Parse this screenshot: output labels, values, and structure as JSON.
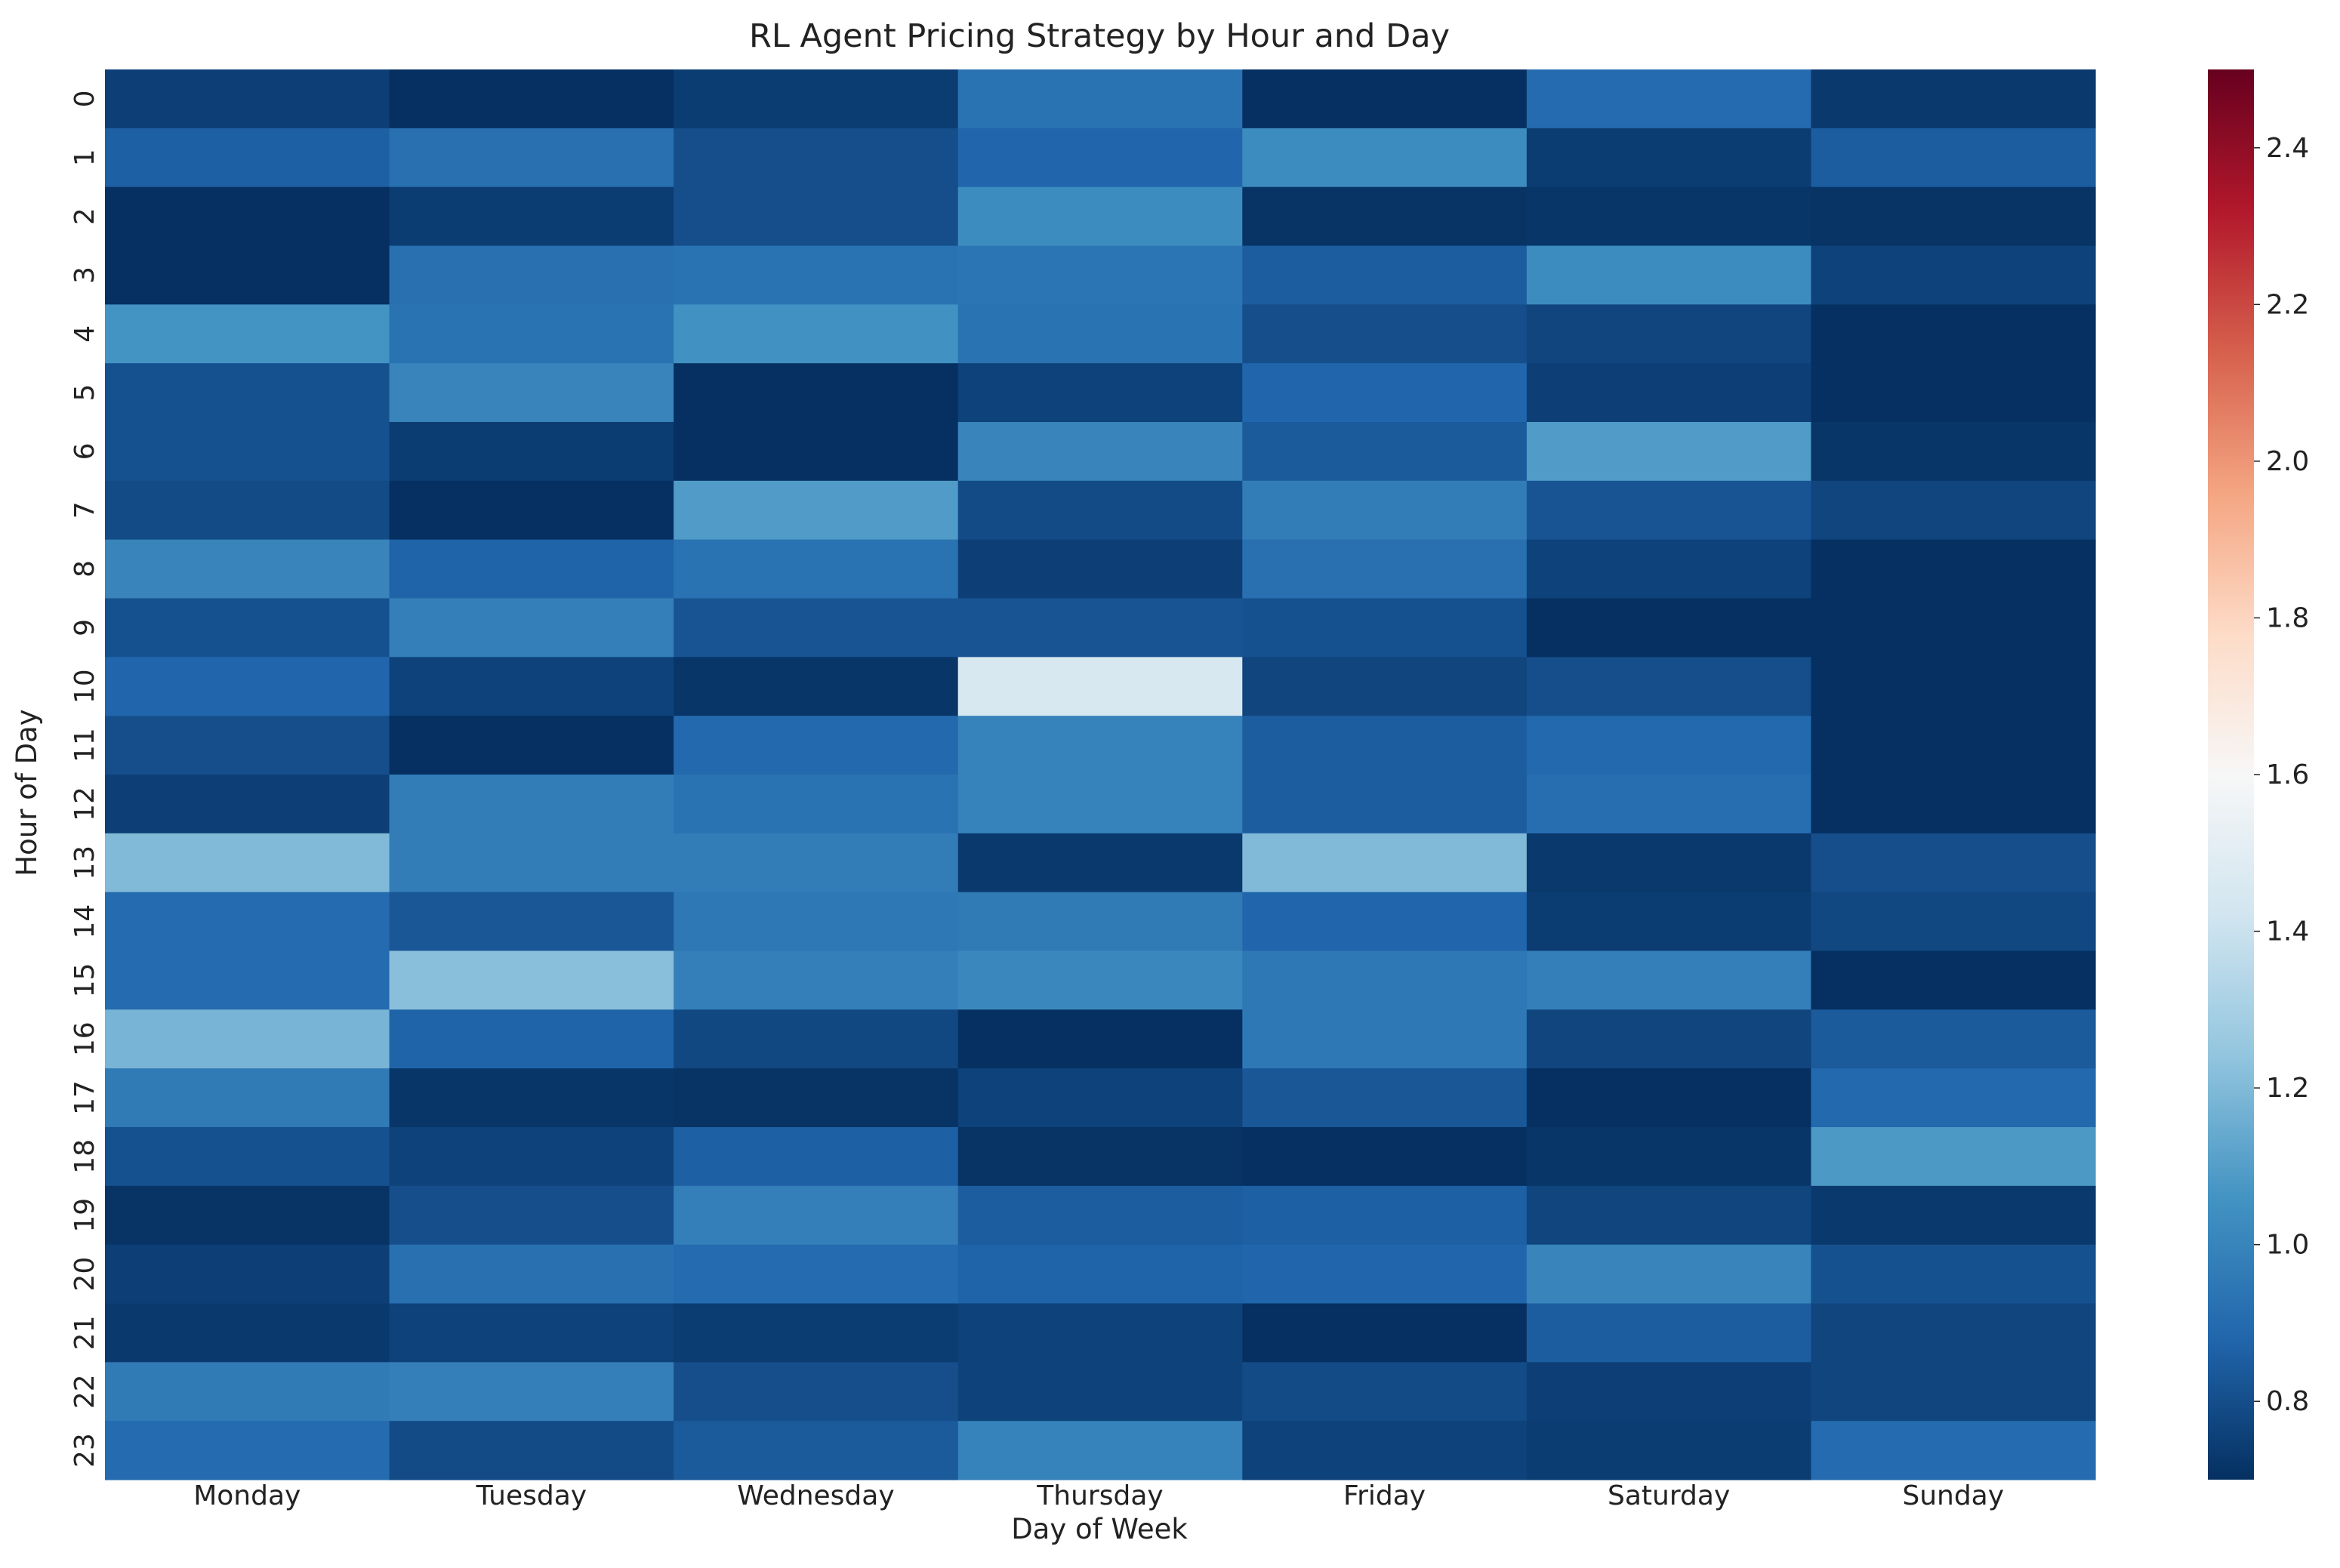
{
  "chart_data": {
    "type": "heatmap",
    "title": "RL Agent Pricing Strategy by Hour and Day",
    "xlabel": "Day of Week",
    "ylabel": "Hour of Day",
    "x_categories": [
      "Monday",
      "Tuesday",
      "Wednesday",
      "Thursday",
      "Friday",
      "Saturday",
      "Sunday"
    ],
    "y_categories": [
      "0",
      "1",
      "2",
      "3",
      "4",
      "5",
      "6",
      "7",
      "8",
      "9",
      "10",
      "11",
      "12",
      "13",
      "14",
      "15",
      "16",
      "17",
      "18",
      "19",
      "20",
      "21",
      "22",
      "23"
    ],
    "values": [
      [
        0.75,
        0.7,
        0.74,
        0.93,
        0.7,
        0.9,
        0.73
      ],
      [
        0.86,
        0.92,
        0.8,
        0.88,
        1.03,
        0.74,
        0.85
      ],
      [
        0.7,
        0.74,
        0.8,
        1.03,
        0.71,
        0.72,
        0.71
      ],
      [
        0.7,
        0.92,
        0.93,
        0.94,
        0.85,
        1.03,
        0.76
      ],
      [
        1.06,
        0.93,
        1.05,
        0.93,
        0.8,
        0.77,
        0.7
      ],
      [
        0.81,
        1.0,
        0.7,
        0.76,
        0.88,
        0.75,
        0.7
      ],
      [
        0.81,
        0.74,
        0.7,
        1.0,
        0.84,
        1.09,
        0.72
      ],
      [
        0.79,
        0.7,
        1.09,
        0.79,
        0.97,
        0.82,
        0.77
      ],
      [
        1.0,
        0.87,
        0.93,
        0.75,
        0.92,
        0.76,
        0.7
      ],
      [
        0.81,
        0.98,
        0.82,
        0.82,
        0.81,
        0.7,
        0.7
      ],
      [
        0.88,
        0.76,
        0.72,
        1.45,
        0.77,
        0.8,
        0.7
      ],
      [
        0.8,
        0.7,
        0.89,
        0.99,
        0.85,
        0.89,
        0.7
      ],
      [
        0.75,
        0.97,
        0.93,
        0.99,
        0.85,
        0.91,
        0.7
      ],
      [
        1.2,
        0.97,
        0.97,
        0.73,
        1.2,
        0.73,
        0.8
      ],
      [
        0.9,
        0.83,
        0.95,
        0.96,
        0.88,
        0.74,
        0.78
      ],
      [
        0.9,
        1.22,
        0.98,
        1.01,
        0.95,
        0.98,
        0.7
      ],
      [
        1.18,
        0.87,
        0.78,
        0.7,
        0.95,
        0.77,
        0.84
      ],
      [
        0.96,
        0.72,
        0.71,
        0.76,
        0.83,
        0.7,
        0.89
      ],
      [
        0.81,
        0.76,
        0.86,
        0.71,
        0.7,
        0.72,
        1.08
      ],
      [
        0.71,
        0.8,
        0.98,
        0.85,
        0.86,
        0.77,
        0.73
      ],
      [
        0.75,
        0.92,
        0.9,
        0.87,
        0.88,
        1.0,
        0.81
      ],
      [
        0.73,
        0.76,
        0.74,
        0.76,
        0.7,
        0.85,
        0.77
      ],
      [
        0.96,
        0.98,
        0.8,
        0.76,
        0.79,
        0.75,
        0.77
      ],
      [
        0.9,
        0.79,
        0.84,
        0.99,
        0.76,
        0.74,
        0.9
      ]
    ],
    "colormap": "RdBu_r",
    "colorbar": {
      "vmin": 0.7,
      "vmax": 2.5,
      "ticks": [
        0.8,
        1.0,
        1.2,
        1.4,
        1.6,
        1.8,
        2.0,
        2.2,
        2.4
      ],
      "tick_labels": [
        "0.8",
        "1.0",
        "1.2",
        "1.4",
        "1.6",
        "1.8",
        "2.0",
        "2.2",
        "2.4"
      ]
    },
    "grid": false,
    "legend": "colorbar-right"
  }
}
